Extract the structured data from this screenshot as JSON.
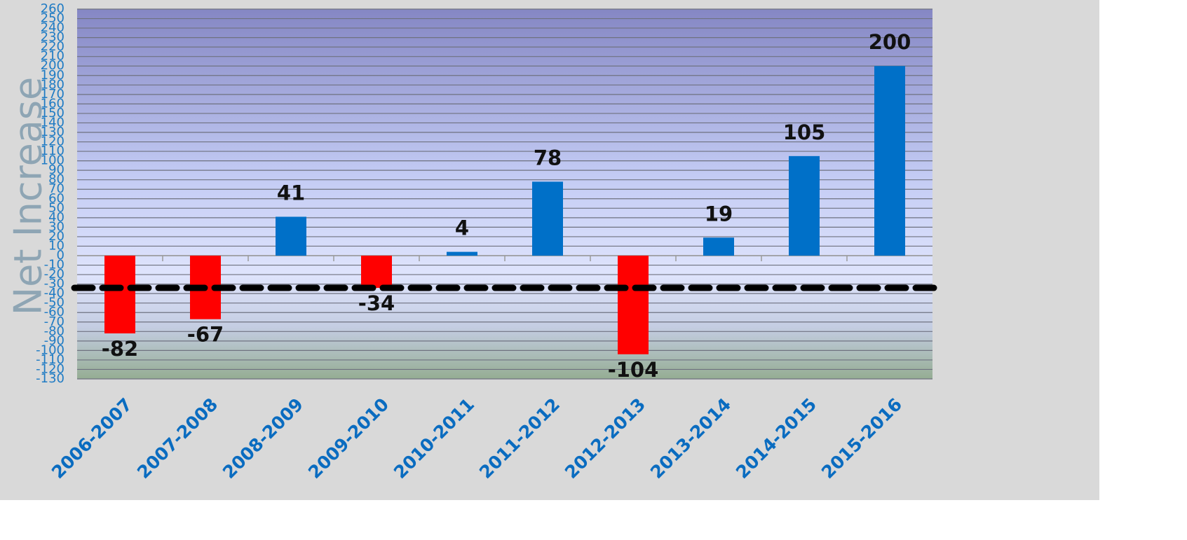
{
  "chart_data": {
    "type": "bar",
    "y_axis_label": "Net Increase",
    "categories": [
      "2006-2007",
      "2007-2008",
      "2008-2009",
      "2009-2010",
      "2010-2011",
      "2011-2012",
      "2012-2013",
      "2013-2014",
      "2014-2015",
      "2015-2016"
    ],
    "values": [
      -82,
      -67,
      41,
      -34,
      4,
      78,
      -104,
      19,
      105,
      200
    ],
    "colors": [
      "#ff0000",
      "#ff0000",
      "#0070c8",
      "#ff0000",
      "#0070c8",
      "#0070c8",
      "#ff0000",
      "#0070c8",
      "#0070c8",
      "#0070c8"
    ],
    "ylim": [
      -130,
      260
    ],
    "yticks": [
      -130,
      -120,
      -110,
      -100,
      -90,
      -80,
      -70,
      -60,
      -50,
      -40,
      -30,
      -20,
      -10,
      0,
      10,
      20,
      30,
      40,
      50,
      60,
      70,
      80,
      90,
      100,
      110,
      120,
      130,
      140,
      150,
      160,
      170,
      180,
      190,
      200,
      210,
      220,
      230,
      240,
      250,
      260
    ],
    "grid": true,
    "reference_line": -34
  }
}
